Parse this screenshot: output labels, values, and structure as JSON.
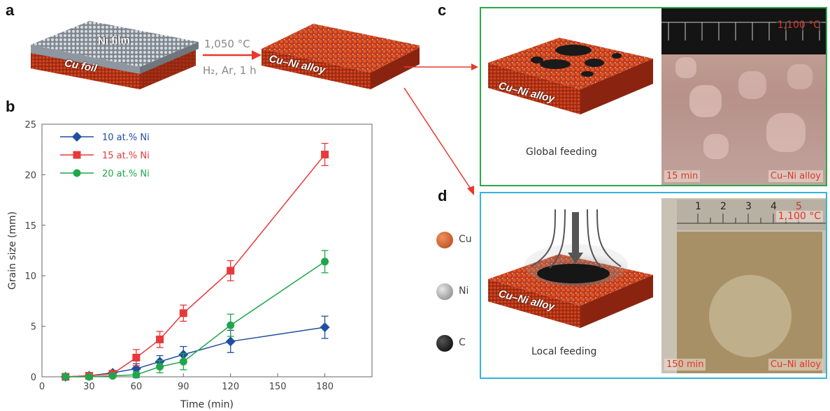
{
  "panels": {
    "a": "a",
    "b": "b",
    "c": "c",
    "d": "d"
  },
  "panel_a": {
    "film_label": "Ni film",
    "foil_label": "Cu foil",
    "alloy_label": "Cu–Ni alloy",
    "arrow_top": "1,050 °C",
    "arrow_bottom": "H₂, Ar, 1 h"
  },
  "panel_c": {
    "slab_label": "Cu–Ni alloy",
    "caption": "Global feeding",
    "photo_temp": "1,100 °C",
    "photo_time": "15 min",
    "photo_material": "Cu–Ni alloy"
  },
  "panel_d": {
    "slab_label": "Cu–Ni alloy",
    "caption": "Local feeding",
    "photo_temp": "1,100 °C",
    "photo_time": "150 min",
    "photo_material": "Cu–Ni alloy",
    "ruler_ticks": [
      "1",
      "2",
      "3",
      "4",
      "5"
    ]
  },
  "atom_legend": [
    {
      "label": "Cu",
      "color": "#c4521f"
    },
    {
      "label": "Ni",
      "color": "#9a9a9a"
    },
    {
      "label": "C",
      "color": "#111111"
    }
  ],
  "colors": {
    "cu": "#c8391a",
    "ni_film": "#a8b0b8",
    "green_frame": "#2aa84a",
    "blue_frame": "#34b4dc",
    "red_arrow": "#e8392e"
  },
  "chart_data": {
    "type": "line",
    "xlabel": "Time (min)",
    "ylabel": "Grain size (mm)",
    "xlim": [
      0,
      210
    ],
    "ylim": [
      0,
      25
    ],
    "xticks": [
      0,
      30,
      60,
      90,
      120,
      150,
      180
    ],
    "yticks": [
      0,
      5,
      10,
      15,
      20,
      25
    ],
    "legend_position": "top-left",
    "series": [
      {
        "name": "10 at.% Ni",
        "color": "#1f4fa0",
        "marker": "diamond",
        "x": [
          15,
          30,
          45,
          60,
          75,
          90,
          120,
          180
        ],
        "y": [
          0,
          0.1,
          0.4,
          0.8,
          1.5,
          2.2,
          3.5,
          4.9
        ],
        "err": [
          0.1,
          0.1,
          0.2,
          0.5,
          0.6,
          0.8,
          1.1,
          1.1
        ]
      },
      {
        "name": "15 at.% Ni",
        "color": "#e8393a",
        "marker": "square",
        "x": [
          15,
          30,
          45,
          60,
          75,
          90,
          120,
          180
        ],
        "y": [
          0,
          0.1,
          0.3,
          1.9,
          3.7,
          6.3,
          10.5,
          22.0
        ],
        "err": [
          0.1,
          0.1,
          0.2,
          0.8,
          0.8,
          0.8,
          1.0,
          1.1
        ]
      },
      {
        "name": "20 at.% Ni",
        "color": "#20a64b",
        "marker": "circle",
        "x": [
          15,
          30,
          45,
          60,
          75,
          90,
          120,
          180
        ],
        "y": [
          0,
          0,
          0.1,
          0.2,
          1.0,
          1.5,
          5.1,
          11.4
        ],
        "err": [
          0.1,
          0.1,
          0.1,
          0.3,
          0.6,
          0.8,
          1.1,
          1.1
        ]
      }
    ]
  }
}
